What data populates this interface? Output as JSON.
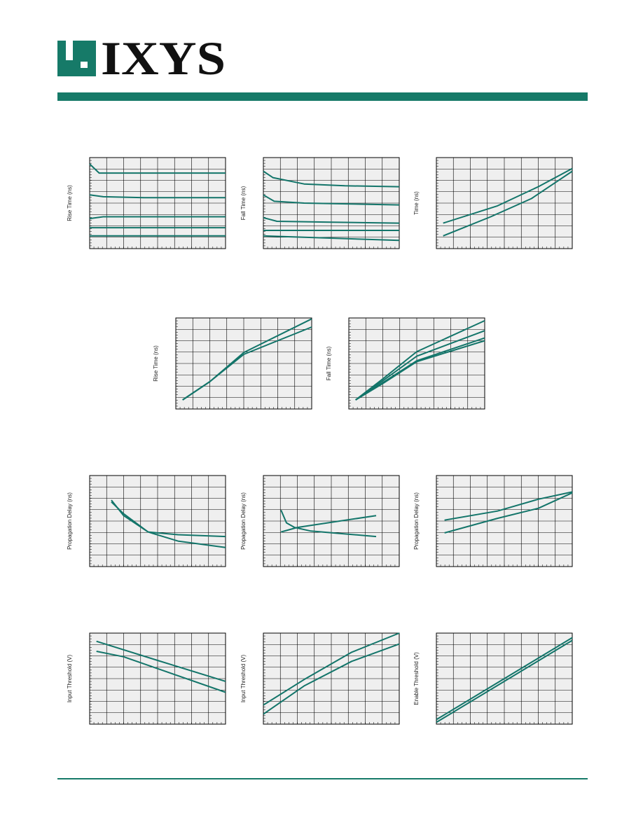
{
  "brand": {
    "name": "IXYS",
    "logo_text": "IXYS",
    "colors": {
      "accent": "#167a68",
      "line": "#13756a",
      "plot_bg": "#efefef",
      "grid": "#000000"
    }
  },
  "chart_data": [
    {
      "type": "line",
      "ylabel": "Rise Time (ns)",
      "grid": true,
      "xlim": [
        0,
        10
      ],
      "ylim": [
        0,
        10
      ],
      "series": [
        {
          "values": [
            [
              0,
              9.3
            ],
            [
              0.7,
              8.3
            ],
            [
              3,
              8.3
            ],
            [
              10,
              8.3
            ]
          ]
        },
        {
          "values": [
            [
              0,
              5.9
            ],
            [
              1,
              5.7
            ],
            [
              4,
              5.6
            ],
            [
              10,
              5.6
            ]
          ]
        },
        {
          "values": [
            [
              0,
              3.3
            ],
            [
              1,
              3.5
            ],
            [
              5,
              3.5
            ],
            [
              10,
              3.5
            ]
          ]
        },
        {
          "values": [
            [
              0,
              2.3
            ],
            [
              10,
              2.3
            ]
          ]
        },
        {
          "values": [
            [
              0,
              1.4
            ],
            [
              10,
              1.4
            ]
          ]
        }
      ]
    },
    {
      "type": "line",
      "ylabel": "Fall Time (ns)",
      "grid": true,
      "xlim": [
        0,
        10
      ],
      "ylim": [
        0,
        10
      ],
      "series": [
        {
          "values": [
            [
              0,
              8.5
            ],
            [
              0.7,
              7.8
            ],
            [
              3,
              7.1
            ],
            [
              6,
              6.9
            ],
            [
              10,
              6.8
            ]
          ]
        },
        {
          "values": [
            [
              0,
              5.9
            ],
            [
              0.8,
              5.2
            ],
            [
              3,
              5.0
            ],
            [
              10,
              4.8
            ]
          ]
        },
        {
          "values": [
            [
              0,
              3.4
            ],
            [
              1,
              3.0
            ],
            [
              5,
              2.9
            ],
            [
              10,
              2.8
            ]
          ]
        },
        {
          "values": [
            [
              0,
              2.0
            ],
            [
              10,
              2.0
            ]
          ]
        },
        {
          "values": [
            [
              0,
              1.4
            ],
            [
              10,
              0.9
            ]
          ]
        }
      ]
    },
    {
      "type": "line",
      "ylabel": "Time (ns)",
      "grid": true,
      "xlim": [
        0,
        10
      ],
      "ylim": [
        0,
        10
      ],
      "series": [
        {
          "values": [
            [
              0.5,
              1.4
            ],
            [
              4,
              3.5
            ],
            [
              7,
              5.5
            ],
            [
              10,
              8.5
            ]
          ]
        },
        {
          "values": [
            [
              0.5,
              0
            ]
          ]
        },
        {
          "values": [
            [
              0.5,
              2.8
            ],
            [
              4.5,
              4.7
            ],
            [
              7.5,
              6.8
            ],
            [
              10,
              8.8
            ]
          ]
        }
      ]
    },
    {
      "type": "line",
      "ylabel": "Rise Time (ns)",
      "grid": true,
      "xlim": [
        0,
        10
      ],
      "ylim": [
        0,
        10
      ],
      "series": [
        {
          "values": [
            [
              0.5,
              1.0
            ],
            [
              2.5,
              3.0
            ],
            [
              5,
              6.2
            ],
            [
              10,
              9.9
            ]
          ]
        },
        {
          "values": [
            [
              0.5,
              1.0
            ],
            [
              2.5,
              3.0
            ],
            [
              5,
              6.0
            ],
            [
              10,
              9.0
            ]
          ]
        }
      ]
    },
    {
      "type": "line",
      "ylabel": "Fall Time (ns)",
      "grid": true,
      "xlim": [
        0,
        10
      ],
      "ylim": [
        0,
        10
      ],
      "series": [
        {
          "values": [
            [
              0.5,
              1.0
            ],
            [
              2.5,
              3.3
            ],
            [
              5,
              6.3
            ],
            [
              10,
              9.7
            ]
          ]
        },
        {
          "values": [
            [
              0.5,
              1.0
            ],
            [
              2.5,
              3.1
            ],
            [
              5,
              5.8
            ],
            [
              10,
              8.6
            ]
          ]
        },
        {
          "values": [
            [
              0.5,
              1.0
            ],
            [
              2.5,
              2.9
            ],
            [
              5,
              5.3
            ],
            [
              10,
              7.8
            ]
          ]
        },
        {
          "values": [
            [
              0.5,
              1.0
            ],
            [
              2.5,
              2.8
            ],
            [
              5,
              5.2
            ],
            [
              10,
              7.5
            ]
          ]
        }
      ]
    },
    {
      "type": "line",
      "ylabel": "Propagation Delay (ns)",
      "grid": true,
      "xlim": [
        0,
        10
      ],
      "ylim": [
        0,
        10
      ],
      "series": [
        {
          "values": [
            [
              1.6,
              7.3
            ],
            [
              2.5,
              5.6
            ],
            [
              4.3,
              3.8
            ],
            [
              6.5,
              3.5
            ],
            [
              10,
              3.3
            ]
          ]
        },
        {
          "values": [
            [
              1.6,
              7.1
            ],
            [
              2.5,
              5.8
            ],
            [
              4.3,
              3.8
            ],
            [
              6.5,
              2.8
            ],
            [
              10,
              2.1
            ]
          ]
        }
      ]
    },
    {
      "type": "line",
      "ylabel": "Propagation Delay (ns)",
      "grid": true,
      "xlim": [
        0,
        10
      ],
      "ylim": [
        0,
        10
      ],
      "series": [
        {
          "values": [
            [
              1.3,
              6.2
            ],
            [
              1.7,
              4.8
            ],
            [
              2.3,
              4.3
            ],
            [
              3.5,
              3.9
            ],
            [
              8.3,
              3.3
            ]
          ]
        },
        {
          "values": [
            [
              1.3,
              3.8
            ],
            [
              2.5,
              4.3
            ],
            [
              8.3,
              5.6
            ]
          ]
        }
      ]
    },
    {
      "type": "line",
      "ylabel": "Propagation Delay (ns)",
      "grid": true,
      "xlim": [
        0,
        10
      ],
      "ylim": [
        0,
        10
      ],
      "series": [
        {
          "values": [
            [
              0.6,
              5.1
            ],
            [
              4.5,
              6.1
            ],
            [
              7.5,
              7.4
            ],
            [
              10,
              8.2
            ]
          ]
        },
        {
          "values": [
            [
              0.6,
              3.7
            ],
            [
              4.5,
              5.3
            ],
            [
              7.5,
              6.4
            ],
            [
              10,
              8.1
            ]
          ]
        }
      ]
    },
    {
      "type": "line",
      "ylabel": "Input Threshold (V)",
      "grid": true,
      "xlim": [
        0,
        10
      ],
      "ylim": [
        0,
        10
      ],
      "series": [
        {
          "values": [
            [
              0.5,
              9.1
            ],
            [
              5,
              7.0
            ],
            [
              10,
              4.7
            ]
          ]
        },
        {
          "values": [
            [
              0.5,
              8.0
            ],
            [
              2.5,
              7.4
            ],
            [
              5,
              6.1
            ],
            [
              10,
              3.5
            ]
          ]
        }
      ]
    },
    {
      "type": "line",
      "ylabel": "Input Threshold (V)",
      "grid": true,
      "xlim": [
        0,
        10
      ],
      "ylim": [
        0,
        10
      ],
      "series": [
        {
          "values": [
            [
              0,
              2.1
            ],
            [
              3,
              4.9
            ],
            [
              6.5,
              7.9
            ],
            [
              10,
              10
            ]
          ]
        },
        {
          "values": [
            [
              0,
              1.1
            ],
            [
              3,
              4.2
            ],
            [
              6.5,
              6.9
            ],
            [
              10,
              8.8
            ]
          ]
        }
      ]
    },
    {
      "type": "line",
      "ylabel": "Enable Threshold (V)",
      "grid": true,
      "xlim": [
        0,
        10
      ],
      "ylim": [
        0,
        10
      ],
      "series": [
        {
          "values": [
            [
              0,
              0.2
            ],
            [
              10,
              9.2
            ]
          ]
        },
        {
          "values": [
            [
              0,
              0.5
            ],
            [
              10,
              9.5
            ]
          ]
        }
      ]
    }
  ]
}
